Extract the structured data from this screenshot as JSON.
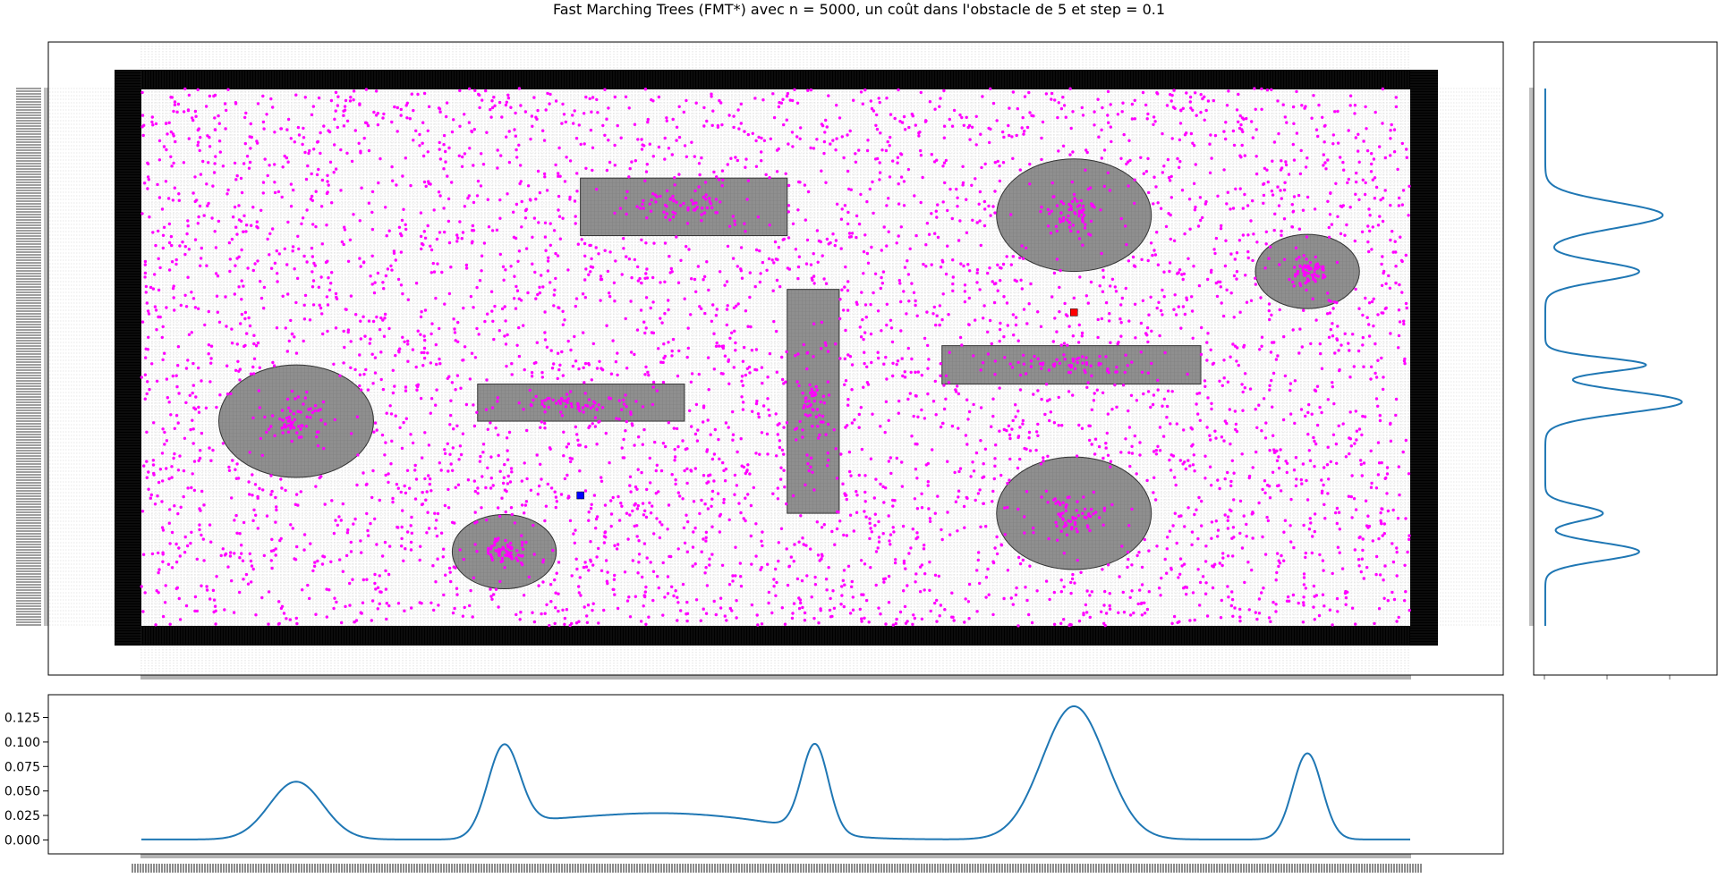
{
  "title": "Fast Marching Trees (FMT*) avec n = 5000, un coût dans l'obstacle de 5 et step = 0.1",
  "chart_data": [
    {
      "name": "main-map",
      "type": "scatter",
      "description_kind": "occupancy map with sampled nodes",
      "x_range": [
        0,
        100
      ],
      "y_range": [
        0,
        42
      ],
      "grid": true,
      "sample_count": 5000,
      "sample_color": "#ff00ff",
      "obstacle_color": "#8f8f8f",
      "border_color": "#000000",
      "start": {
        "x": 34.6,
        "y": 10.2,
        "color": "#0000ff"
      },
      "goal": {
        "x": 73.5,
        "y": 24.5,
        "color": "#ff0000"
      },
      "obstacles": [
        {
          "shape": "rect",
          "x0": 34.6,
          "x1": 50.9,
          "y0": 30.5,
          "y1": 35.0
        },
        {
          "shape": "rect",
          "x0": 26.5,
          "x1": 42.8,
          "y0": 16.0,
          "y1": 18.9
        },
        {
          "shape": "rect",
          "x0": 50.9,
          "x1": 55.0,
          "y0": 8.8,
          "y1": 26.3
        },
        {
          "shape": "rect",
          "x0": 63.1,
          "x1": 83.5,
          "y0": 18.9,
          "y1": 21.9
        },
        {
          "shape": "ellipse",
          "cx": 12.2,
          "cy": 16.0,
          "rx": 6.1,
          "ry": 4.4
        },
        {
          "shape": "ellipse",
          "cx": 28.6,
          "cy": 5.8,
          "rx": 4.1,
          "ry": 2.9
        },
        {
          "shape": "ellipse",
          "cx": 73.5,
          "cy": 32.1,
          "rx": 6.1,
          "ry": 4.4
        },
        {
          "shape": "ellipse",
          "cx": 91.9,
          "cy": 27.7,
          "rx": 4.1,
          "ry": 2.9
        },
        {
          "shape": "ellipse",
          "cx": 73.5,
          "cy": 8.8,
          "rx": 6.1,
          "ry": 4.4
        }
      ]
    },
    {
      "name": "x-density",
      "type": "line",
      "x_range": [
        0,
        100
      ],
      "ylim": [
        -0.006,
        0.141
      ],
      "yticks": [
        "0.000",
        "0.025",
        "0.050",
        "0.075",
        "0.100",
        "0.125"
      ],
      "peaks": [
        {
          "x": 12.2,
          "y": 0.059
        },
        {
          "x": 28.6,
          "y": 0.096
        },
        {
          "x": 53.1,
          "y": 0.089
        },
        {
          "x": 73.5,
          "y": 0.136
        },
        {
          "x": 91.9,
          "y": 0.088
        }
      ],
      "plateau": {
        "x0": 30.5,
        "x1": 52.5,
        "y": 0.027
      }
    },
    {
      "name": "y-density",
      "type": "line",
      "y_range": [
        0,
        42
      ],
      "peaks": [
        {
          "y": 32.1,
          "value": 0.11
        },
        {
          "y": 27.7,
          "value": 0.088
        },
        {
          "y": 20.4,
          "value": 0.094
        },
        {
          "y": 17.5,
          "value": 0.128
        },
        {
          "y": 8.8,
          "value": 0.054
        },
        {
          "y": 5.8,
          "value": 0.088
        }
      ]
    }
  ]
}
